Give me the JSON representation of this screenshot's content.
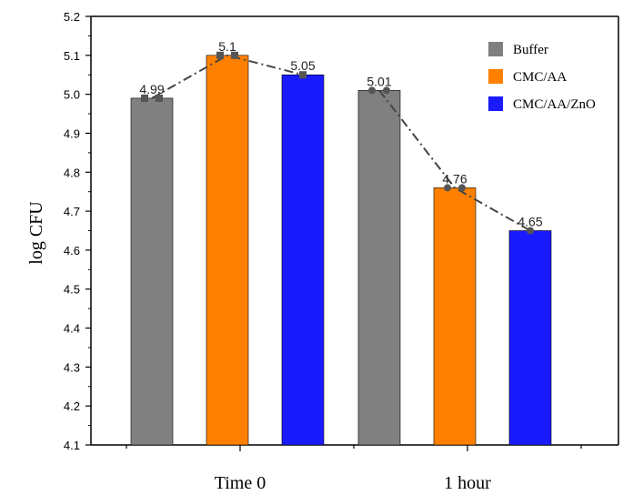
{
  "chart_data": {
    "type": "bar",
    "title": "",
    "xlabel": "",
    "ylabel": "log CFU",
    "ylim": [
      4.1,
      5.2
    ],
    "yticks": [
      "4.1",
      "4.2",
      "4.3",
      "4.4",
      "4.5",
      "4.6",
      "4.7",
      "4.8",
      "4.9",
      "5.0",
      "5.1",
      "5.2"
    ],
    "categories": [
      "Time 0",
      "1 hour"
    ],
    "series": [
      {
        "name": "Buffer",
        "color": "#808080",
        "values": [
          4.99,
          5.01
        ],
        "labels": [
          "4.99",
          "5.01"
        ]
      },
      {
        "name": "CMC/AA",
        "color": "#ff8000",
        "values": [
          5.1,
          4.76
        ],
        "labels": [
          "5.1",
          "4.76"
        ]
      },
      {
        "name": "CMC/AA/ZnO",
        "color": "#1a1aff",
        "values": [
          5.05,
          4.65
        ],
        "labels": [
          "5.05",
          "4.65"
        ]
      }
    ],
    "trend_lines": "dash-dot connecting bar tops within each group",
    "legend_position": "top-right",
    "grid": false
  }
}
